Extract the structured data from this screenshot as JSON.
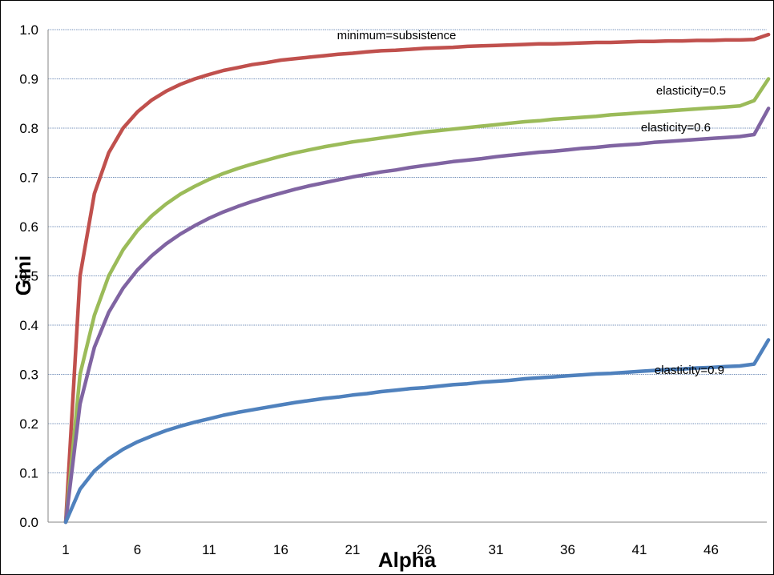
{
  "chart_data": {
    "type": "line",
    "title": "",
    "xlabel": "Alpha",
    "ylabel": "Gini",
    "x": [
      1,
      2,
      3,
      4,
      5,
      6,
      7,
      8,
      9,
      10,
      11,
      12,
      13,
      14,
      15,
      16,
      17,
      18,
      19,
      20,
      21,
      22,
      23,
      24,
      25,
      26,
      27,
      28,
      29,
      30,
      31,
      32,
      33,
      34,
      35,
      36,
      37,
      38,
      39,
      40,
      41,
      42,
      43,
      44,
      45,
      46,
      47,
      48,
      49,
      50
    ],
    "x_tick_labels": [
      "1",
      "6",
      "11",
      "16",
      "21",
      "26",
      "31",
      "36",
      "41",
      "46"
    ],
    "y_tick_labels": [
      "0.0",
      "0.1",
      "0.2",
      "0.3",
      "0.4",
      "0.5",
      "0.6",
      "0.7",
      "0.8",
      "0.9",
      "1.0"
    ],
    "ylim": [
      0,
      1.0
    ],
    "xlim": [
      1,
      50
    ],
    "grid": "horizontal-major",
    "legend": "none",
    "series": [
      {
        "name": "minimum=subsistence",
        "color": "#c0504d",
        "values": [
          0,
          0.5,
          0.667,
          0.75,
          0.8,
          0.833,
          0.857,
          0.875,
          0.889,
          0.9,
          0.909,
          0.917,
          0.923,
          0.929,
          0.933,
          0.938,
          0.941,
          0.944,
          0.947,
          0.95,
          0.952,
          0.955,
          0.957,
          0.958,
          0.96,
          0.962,
          0.963,
          0.964,
          0.966,
          0.967,
          0.968,
          0.969,
          0.97,
          0.971,
          0.971,
          0.972,
          0.973,
          0.974,
          0.974,
          0.975,
          0.976,
          0.976,
          0.977,
          0.977,
          0.978,
          0.978,
          0.979,
          0.979,
          0.98,
          0.99
        ]
      },
      {
        "name": "elasticity=0.5",
        "color": "#9bbb59",
        "values": [
          0,
          0.3,
          0.42,
          0.5,
          0.553,
          0.592,
          0.622,
          0.646,
          0.666,
          0.682,
          0.696,
          0.708,
          0.718,
          0.727,
          0.735,
          0.743,
          0.75,
          0.756,
          0.762,
          0.767,
          0.772,
          0.776,
          0.78,
          0.784,
          0.788,
          0.792,
          0.795,
          0.798,
          0.801,
          0.804,
          0.807,
          0.81,
          0.813,
          0.815,
          0.818,
          0.82,
          0.822,
          0.824,
          0.827,
          0.829,
          0.831,
          0.833,
          0.835,
          0.837,
          0.839,
          0.841,
          0.843,
          0.845,
          0.856,
          0.9
        ]
      },
      {
        "name": "elasticity=0.6",
        "color": "#8064a2",
        "values": [
          0,
          0.24,
          0.355,
          0.426,
          0.475,
          0.512,
          0.541,
          0.565,
          0.585,
          0.602,
          0.617,
          0.63,
          0.641,
          0.651,
          0.66,
          0.668,
          0.676,
          0.683,
          0.689,
          0.695,
          0.701,
          0.706,
          0.711,
          0.715,
          0.72,
          0.724,
          0.728,
          0.732,
          0.735,
          0.738,
          0.742,
          0.745,
          0.748,
          0.751,
          0.753,
          0.756,
          0.759,
          0.761,
          0.764,
          0.766,
          0.768,
          0.771,
          0.773,
          0.775,
          0.777,
          0.779,
          0.781,
          0.783,
          0.787,
          0.84
        ]
      },
      {
        "name": "elasticity=0.9",
        "color": "#4f81bd",
        "values": [
          0,
          0.067,
          0.104,
          0.129,
          0.148,
          0.163,
          0.175,
          0.186,
          0.195,
          0.203,
          0.21,
          0.217,
          0.223,
          0.228,
          0.233,
          0.238,
          0.243,
          0.247,
          0.251,
          0.254,
          0.258,
          0.261,
          0.265,
          0.268,
          0.271,
          0.273,
          0.276,
          0.279,
          0.281,
          0.284,
          0.286,
          0.288,
          0.291,
          0.293,
          0.295,
          0.297,
          0.299,
          0.301,
          0.302,
          0.304,
          0.306,
          0.308,
          0.31,
          0.311,
          0.313,
          0.314,
          0.316,
          0.317,
          0.321,
          0.37
        ]
      }
    ]
  }
}
